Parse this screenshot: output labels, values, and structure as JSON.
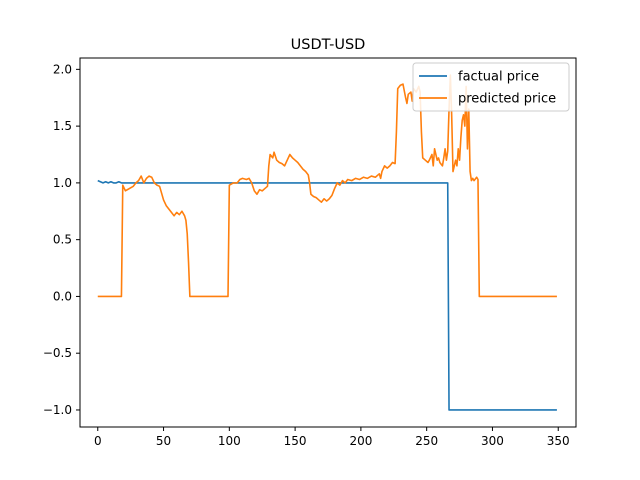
{
  "chart_data": {
    "type": "line",
    "title": "USDT-USD",
    "xlabel": "",
    "ylabel": "",
    "xlim": [
      -13.5,
      363.5
    ],
    "ylim": [
      -1.15,
      2.1
    ],
    "xticks": [
      0,
      50,
      100,
      150,
      200,
      250,
      300,
      350
    ],
    "yticks": [
      -1.0,
      -0.5,
      0.0,
      0.5,
      1.0,
      1.5,
      2.0
    ],
    "xtick_labels": [
      "0",
      "50",
      "100",
      "150",
      "200",
      "250",
      "300",
      "350"
    ],
    "ytick_labels": [
      "−1.0",
      "−0.5",
      "0.0",
      "0.5",
      "1.0",
      "1.5",
      "2.0"
    ],
    "grid": false,
    "legend_position": "top-right",
    "series": [
      {
        "name": "factual price",
        "color": "#1f77b4",
        "points": [
          [
            0,
            1.02
          ],
          [
            2,
            1.01
          ],
          [
            4,
            1.0
          ],
          [
            6,
            1.01
          ],
          [
            8,
            1.0
          ],
          [
            10,
            1.01
          ],
          [
            12,
            1.0
          ],
          [
            14,
            1.0
          ],
          [
            16,
            1.01
          ],
          [
            18,
            1.0
          ],
          [
            20,
            1.0
          ],
          [
            30,
            1.0
          ],
          [
            40,
            1.0
          ],
          [
            60,
            1.0
          ],
          [
            80,
            1.0
          ],
          [
            100,
            1.0
          ],
          [
            150,
            1.0
          ],
          [
            200,
            1.0
          ],
          [
            266,
            1.0
          ],
          [
            267,
            -1.0
          ],
          [
            349,
            -1.0
          ]
        ]
      },
      {
        "name": "predicted price",
        "color": "#ff7f0e",
        "points": [
          [
            0,
            0.0
          ],
          [
            18,
            0.0
          ],
          [
            19,
            0.98
          ],
          [
            21,
            0.93
          ],
          [
            24,
            0.95
          ],
          [
            27,
            0.97
          ],
          [
            29,
            1.0
          ],
          [
            31,
            1.02
          ],
          [
            33,
            1.06
          ],
          [
            35,
            1.0
          ],
          [
            37,
            1.04
          ],
          [
            39,
            1.06
          ],
          [
            41,
            1.05
          ],
          [
            43,
            1.0
          ],
          [
            45,
            0.98
          ],
          [
            47,
            0.97
          ],
          [
            48,
            0.93
          ],
          [
            50,
            0.85
          ],
          [
            52,
            0.8
          ],
          [
            54,
            0.77
          ],
          [
            56,
            0.74
          ],
          [
            58,
            0.71
          ],
          [
            60,
            0.74
          ],
          [
            62,
            0.72
          ],
          [
            64,
            0.75
          ],
          [
            66,
            0.71
          ],
          [
            67,
            0.67
          ],
          [
            68,
            0.55
          ],
          [
            69,
            0.3
          ],
          [
            70,
            0.0
          ],
          [
            99,
            0.0
          ],
          [
            100,
            0.98
          ],
          [
            103,
            1.0
          ],
          [
            106,
            1.0
          ],
          [
            108,
            1.03
          ],
          [
            110,
            1.04
          ],
          [
            113,
            1.03
          ],
          [
            115,
            1.04
          ],
          [
            117,
            1.0
          ],
          [
            119,
            0.93
          ],
          [
            121,
            0.9
          ],
          [
            123,
            0.94
          ],
          [
            125,
            0.93
          ],
          [
            127,
            0.95
          ],
          [
            129,
            0.97
          ],
          [
            130,
            1.15
          ],
          [
            131,
            1.25
          ],
          [
            133,
            1.22
          ],
          [
            134,
            1.27
          ],
          [
            136,
            1.2
          ],
          [
            138,
            1.18
          ],
          [
            140,
            1.17
          ],
          [
            142,
            1.15
          ],
          [
            144,
            1.2
          ],
          [
            146,
            1.25
          ],
          [
            148,
            1.22
          ],
          [
            150,
            1.2
          ],
          [
            152,
            1.18
          ],
          [
            154,
            1.15
          ],
          [
            156,
            1.12
          ],
          [
            158,
            1.1
          ],
          [
            160,
            1.07
          ],
          [
            161,
            1.0
          ],
          [
            162,
            0.9
          ],
          [
            164,
            0.88
          ],
          [
            166,
            0.87
          ],
          [
            168,
            0.85
          ],
          [
            170,
            0.83
          ],
          [
            172,
            0.86
          ],
          [
            174,
            0.84
          ],
          [
            176,
            0.86
          ],
          [
            178,
            0.89
          ],
          [
            180,
            0.95
          ],
          [
            182,
            1.0
          ],
          [
            184,
            0.98
          ],
          [
            186,
            1.02
          ],
          [
            188,
            1.0
          ],
          [
            190,
            1.03
          ],
          [
            193,
            1.02
          ],
          [
            196,
            1.04
          ],
          [
            199,
            1.03
          ],
          [
            202,
            1.05
          ],
          [
            205,
            1.04
          ],
          [
            208,
            1.06
          ],
          [
            211,
            1.05
          ],
          [
            214,
            1.08
          ],
          [
            215,
            1.04
          ],
          [
            216,
            1.1
          ],
          [
            218,
            1.15
          ],
          [
            220,
            1.13
          ],
          [
            222,
            1.15
          ],
          [
            224,
            1.18
          ],
          [
            226,
            1.17
          ],
          [
            227,
            1.45
          ],
          [
            228,
            1.83
          ],
          [
            230,
            1.86
          ],
          [
            232,
            1.87
          ],
          [
            234,
            1.75
          ],
          [
            235,
            1.7
          ],
          [
            236,
            1.78
          ],
          [
            238,
            1.8
          ],
          [
            239,
            1.72
          ],
          [
            240,
            1.83
          ],
          [
            242,
            1.8
          ],
          [
            244,
            1.85
          ],
          [
            245,
            1.8
          ],
          [
            246,
            1.45
          ],
          [
            247,
            1.22
          ],
          [
            249,
            1.2
          ],
          [
            251,
            1.18
          ],
          [
            252,
            1.2
          ],
          [
            254,
            1.25
          ],
          [
            255,
            1.15
          ],
          [
            256,
            1.3
          ],
          [
            258,
            1.2
          ],
          [
            259,
            1.22
          ],
          [
            260,
            1.18
          ],
          [
            262,
            1.15
          ],
          [
            263,
            1.22
          ],
          [
            264,
            1.3
          ],
          [
            265,
            1.2
          ],
          [
            266,
            1.28
          ],
          [
            267,
            1.65
          ],
          [
            268,
            1.95
          ],
          [
            269,
            1.6
          ],
          [
            270,
            1.1
          ],
          [
            272,
            1.2
          ],
          [
            273,
            1.15
          ],
          [
            274,
            1.3
          ],
          [
            275,
            1.2
          ],
          [
            276,
            1.4
          ],
          [
            277,
            1.55
          ],
          [
            278,
            1.6
          ],
          [
            279,
            1.5
          ],
          [
            280,
            1.85
          ],
          [
            281,
            1.3
          ],
          [
            282,
            1.65
          ],
          [
            283,
            1.1
          ],
          [
            284,
            1.02
          ],
          [
            285,
            1.04
          ],
          [
            286,
            1.02
          ],
          [
            288,
            1.05
          ],
          [
            289,
            1.03
          ],
          [
            290,
            0.0
          ],
          [
            349,
            0.0
          ]
        ]
      }
    ]
  }
}
